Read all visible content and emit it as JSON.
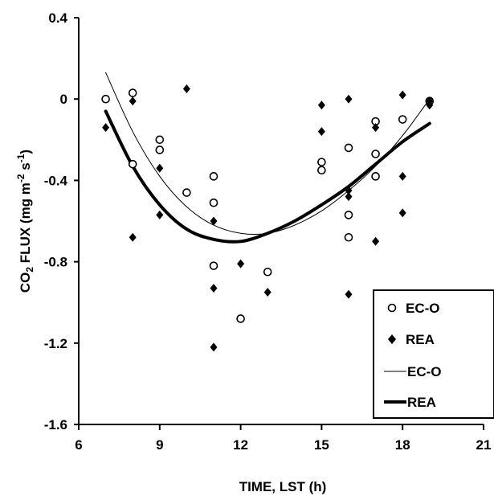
{
  "chart_data": {
    "type": "scatter",
    "xlabel": "TIME, LST (h)",
    "ylabel": {
      "base": "CO",
      "sub": "2",
      "rest": " FLUX (mg m",
      "sup1": "-2",
      "mid": " s",
      "sup2": "-1",
      "end": ")"
    },
    "xlim": [
      6,
      21
    ],
    "ylim": [
      -1.6,
      0.4
    ],
    "x_ticks": [
      "6",
      "9",
      "12",
      "15",
      "18",
      "21"
    ],
    "y_ticks": [
      "0.4",
      "0",
      "-0.4",
      "-0.8",
      "-1.2",
      "-1.6"
    ],
    "grid": false,
    "legend_position": "bottom-right",
    "legend": [
      "EC-O",
      "REA",
      "EC-O",
      "REA"
    ],
    "series": [
      {
        "name": "EC-O",
        "kind": "points",
        "marker": "open-circle",
        "x": [
          7,
          8,
          8,
          9,
          9,
          10,
          11,
          11,
          11,
          12,
          13,
          15,
          15,
          16,
          16,
          16,
          17,
          17,
          17,
          18,
          19
        ],
        "y": [
          0.0,
          0.03,
          -0.32,
          -0.2,
          -0.25,
          -0.46,
          -0.38,
          -0.51,
          -0.82,
          -1.08,
          -0.85,
          -0.31,
          -0.35,
          -0.24,
          -0.57,
          -0.68,
          -0.11,
          -0.27,
          -0.38,
          -0.1,
          -0.01
        ]
      },
      {
        "name": "REA",
        "kind": "points",
        "marker": "filled-diamond",
        "x": [
          7,
          8,
          8,
          9,
          9,
          10,
          11,
          11,
          11,
          12,
          13,
          15,
          15,
          16,
          16,
          16,
          16,
          17,
          17,
          18,
          18,
          18,
          19,
          19
        ],
        "y": [
          -0.14,
          -0.01,
          -0.68,
          -0.34,
          -0.57,
          0.05,
          -0.6,
          -0.93,
          -1.22,
          -0.81,
          -0.95,
          -0.03,
          -0.16,
          0.0,
          -0.45,
          -0.48,
          -0.96,
          -0.14,
          -0.7,
          0.02,
          -0.38,
          -0.56,
          -0.01,
          -0.03
        ]
      },
      {
        "name": "EC-O",
        "kind": "fit-line",
        "stroke": "thin",
        "x": [
          7,
          8,
          9,
          10,
          11,
          12,
          13,
          14,
          15,
          16,
          17,
          18,
          19
        ],
        "y": [
          0.13,
          -0.16,
          -0.38,
          -0.53,
          -0.62,
          -0.66,
          -0.66,
          -0.62,
          -0.55,
          -0.45,
          -0.33,
          -0.18,
          0.0
        ]
      },
      {
        "name": "REA",
        "kind": "fit-line",
        "stroke": "thick",
        "x": [
          7,
          8,
          9,
          10,
          11,
          12,
          13,
          14,
          15,
          16,
          17,
          18,
          19
        ],
        "y": [
          -0.06,
          -0.33,
          -0.52,
          -0.64,
          -0.69,
          -0.7,
          -0.66,
          -0.6,
          -0.52,
          -0.43,
          -0.32,
          -0.21,
          -0.12
        ]
      }
    ]
  }
}
